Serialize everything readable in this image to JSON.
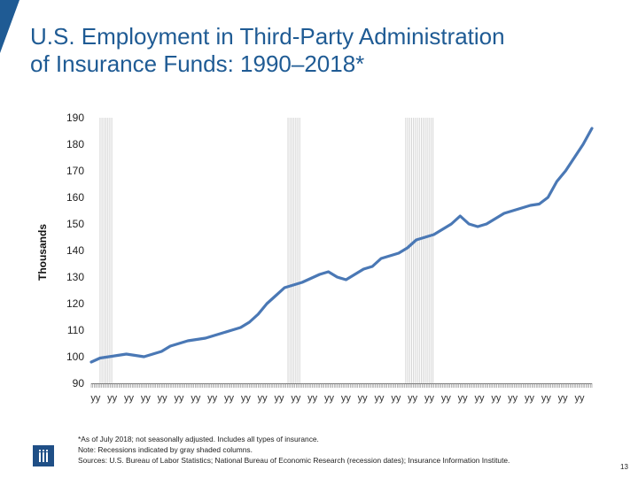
{
  "slide": {
    "title_line1": "U.S. Employment in Third-Party Administration",
    "title_line2": "of Insurance Funds: 1990–2018*",
    "footnote_lines": [
      "*As of July 2018; not seasonally adjusted. Includes all types of insurance.",
      "Note: Recessions indicated by gray shaded columns.",
      "Sources: U.S. Bureau of Labor Statistics; National Bureau of Economic Research (recession dates); Insurance Information Institute."
    ],
    "page_number": "13",
    "logo_name": "iii-logo",
    "colors": {
      "title": "#1f5b94",
      "line": "#4a78b5",
      "recession": "#d4d4d4",
      "corner": "#1f5b94",
      "logo": "#1f4f86"
    }
  },
  "chart_data": {
    "type": "line",
    "title": "",
    "ylabel": "Thousands",
    "xlabel": "",
    "ylim": [
      90,
      190
    ],
    "yticks": [
      90,
      100,
      110,
      120,
      130,
      140,
      150,
      160,
      170,
      180,
      190
    ],
    "x_tick_labels": [
      "yy",
      "yy",
      "yy",
      "yy",
      "yy",
      "yy",
      "yy",
      "yy",
      "yy",
      "yy",
      "yy",
      "yy",
      "yy",
      "yy",
      "yy",
      "yy",
      "yy",
      "yy",
      "yy",
      "yy",
      "yy",
      "yy",
      "yy",
      "yy",
      "yy",
      "yy",
      "yy",
      "yy",
      "yy",
      "yy"
    ],
    "x_range": [
      1990.0,
      2018.5
    ],
    "recessions": [
      [
        1990.5,
        1991.2
      ],
      [
        2001.2,
        2001.9
      ],
      [
        2007.9,
        2009.5
      ]
    ],
    "series": [
      {
        "x": [
          1990.0,
          1990.5,
          1991.0,
          1991.5,
          1992.0,
          1992.5,
          1993.0,
          1993.5,
          1994.0,
          1994.5,
          1995.0,
          1995.5,
          1996.0,
          1996.5,
          1997.0,
          1997.5,
          1998.0,
          1998.5,
          1999.0,
          1999.5,
          2000.0,
          2000.5,
          2001.0,
          2001.5,
          2002.0,
          2002.5,
          2003.0,
          2003.5,
          2004.0,
          2004.5,
          2005.0,
          2005.5,
          2006.0,
          2006.5,
          2007.0,
          2007.5,
          2008.0,
          2008.5,
          2009.0,
          2009.5,
          2010.0,
          2010.5,
          2011.0,
          2011.5,
          2012.0,
          2012.5,
          2013.0,
          2013.5,
          2014.0,
          2014.5,
          2015.0,
          2015.5,
          2016.0,
          2016.5,
          2017.0,
          2017.5,
          2018.0,
          2018.5
        ],
        "y": [
          98,
          99.5,
          100,
          100.5,
          101,
          100.5,
          100,
          101,
          102,
          104,
          105,
          106,
          106.5,
          107,
          108,
          109,
          110,
          111,
          113,
          116,
          120,
          123,
          126,
          127,
          128,
          129.5,
          131,
          132,
          130,
          129,
          131,
          133,
          134,
          137,
          138,
          139,
          141,
          144,
          145,
          146,
          148,
          150,
          153,
          150,
          149,
          150,
          152,
          154,
          155,
          156,
          157,
          157.5,
          160,
          166,
          170,
          175,
          180,
          186
        ]
      }
    ]
  }
}
